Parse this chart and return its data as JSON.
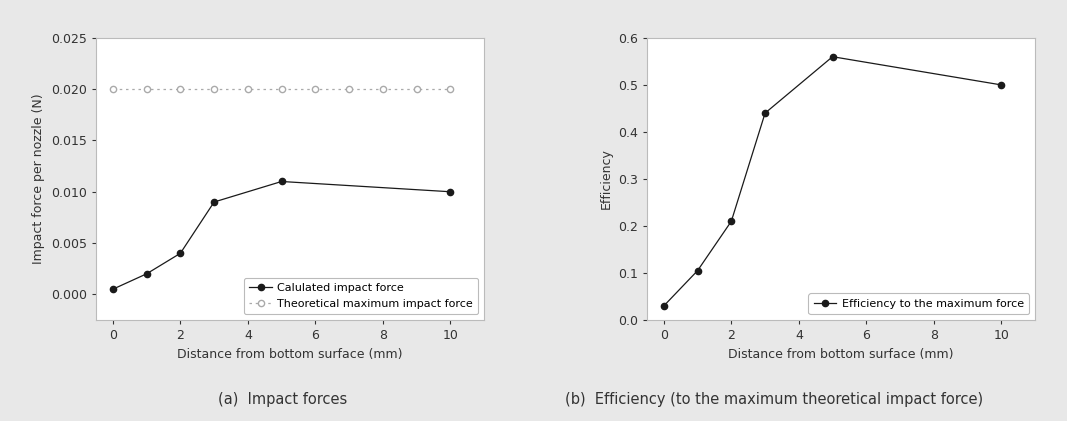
{
  "left": {
    "x_calculated": [
      0,
      1,
      2,
      3,
      5,
      10
    ],
    "y_calculated": [
      0.0005,
      0.002,
      0.004,
      0.009,
      0.011,
      0.01
    ],
    "x_theoretical": [
      0,
      1,
      2,
      3,
      4,
      5,
      6,
      7,
      8,
      9,
      10
    ],
    "y_theoretical": [
      0.02,
      0.02,
      0.02,
      0.02,
      0.02,
      0.02,
      0.02,
      0.02,
      0.02,
      0.02,
      0.02
    ],
    "ylabel": "Impact force per nozzle (N)",
    "xlabel": "Distance from bottom surface (mm)",
    "ylim": [
      -0.0025,
      0.025
    ],
    "yticks": [
      0.0,
      0.005,
      0.01,
      0.015,
      0.02,
      0.025
    ],
    "xlim": [
      -0.5,
      11
    ],
    "xticks": [
      0,
      2,
      4,
      6,
      8,
      10
    ],
    "legend_calculated": "Calulated impact force",
    "legend_theoretical": "Theoretical maximum impact force",
    "caption": "(a)  Impact forces",
    "line_color": "#1a1a1a",
    "theoretical_color": "#aaaaaa"
  },
  "right": {
    "x": [
      0,
      1,
      2,
      3,
      5,
      10
    ],
    "y": [
      0.03,
      0.105,
      0.21,
      0.44,
      0.56,
      0.5
    ],
    "ylabel": "Efficiency",
    "xlabel": "Distance from bottom surface (mm)",
    "ylim": [
      0.0,
      0.6
    ],
    "yticks": [
      0.0,
      0.1,
      0.2,
      0.3,
      0.4,
      0.5,
      0.6
    ],
    "xlim": [
      -0.5,
      11
    ],
    "xticks": [
      0,
      2,
      4,
      6,
      8,
      10
    ],
    "legend": "Efficiency to the maximum force",
    "caption": "(b)  Efficiency (to the maximum theoretical impact force)",
    "line_color": "#1a1a1a"
  },
  "fig_bg_color": "#e8e8e8",
  "axes_bg_color": "#ffffff",
  "spine_color": "#bbbbbb",
  "tick_color": "#333333",
  "font_size": 9,
  "caption_font_size": 10.5
}
